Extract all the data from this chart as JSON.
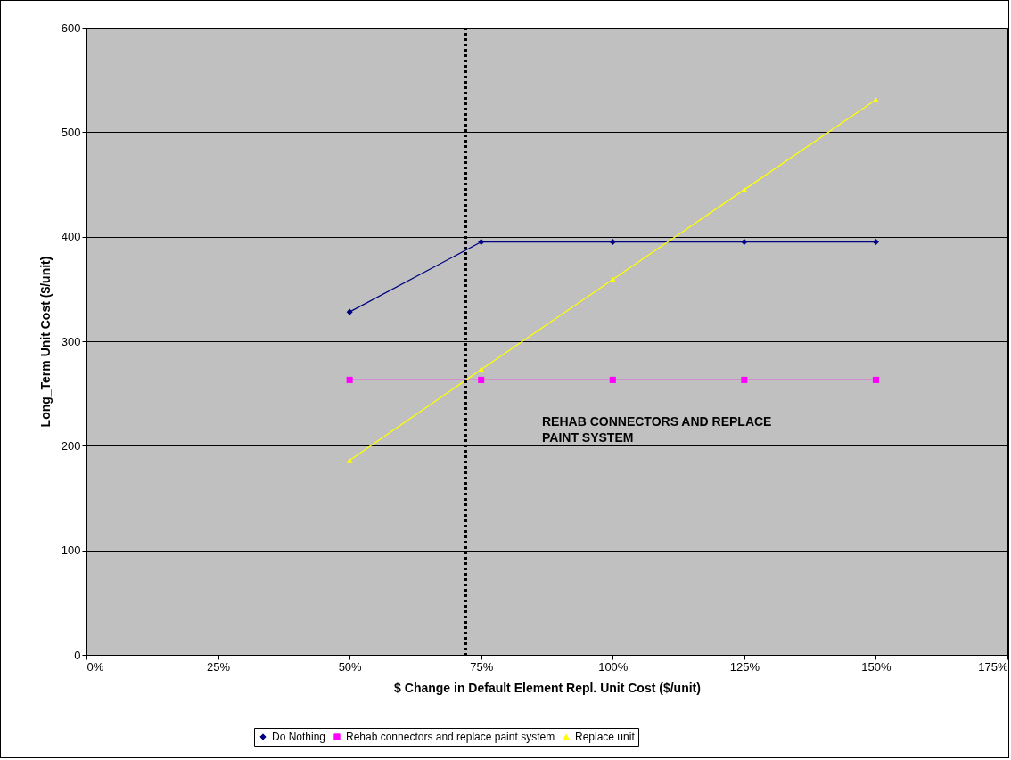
{
  "chart_data": {
    "type": "line",
    "xlabel": "$ Change in Default Element Repl. Unit Cost ($/unit)",
    "ylabel": "Long_Term Unit Cost ($/unit)",
    "x": [
      50,
      75,
      100,
      125,
      150
    ],
    "series": [
      {
        "name": "Do Nothing",
        "color": "#000080",
        "marker": "diamond",
        "values": [
          328,
          395,
          395,
          395,
          395
        ]
      },
      {
        "name": "Rehab connectors and replace paint system",
        "color": "#ff00ff",
        "marker": "square",
        "values": [
          263,
          263,
          263,
          263,
          263
        ]
      },
      {
        "name": "Replace unit",
        "color": "#ffff00",
        "marker": "triangle",
        "values": [
          186,
          273,
          359,
          445,
          531
        ]
      }
    ],
    "xlim": [
      0,
      175
    ],
    "xticks": [
      {
        "value": 0,
        "label": "0%"
      },
      {
        "value": 25,
        "label": "25%"
      },
      {
        "value": 50,
        "label": "50%"
      },
      {
        "value": 75,
        "label": "75%"
      },
      {
        "value": 100,
        "label": "100%"
      },
      {
        "value": 125,
        "label": "125%"
      },
      {
        "value": 150,
        "label": "150%"
      },
      {
        "value": 175,
        "label": "175%"
      }
    ],
    "ylim": [
      0,
      600
    ],
    "yticks": [
      0,
      100,
      200,
      300,
      400,
      500,
      600
    ],
    "ref_lines": [
      {
        "axis": "x",
        "value": 72,
        "color": "#000000",
        "line_style": "dotted"
      }
    ],
    "annotations": [
      "REHAB CONNECTORS AND REPLACE PAINT SYSTEM"
    ],
    "grid": "y",
    "legend": "bottom",
    "line_style": "solid"
  }
}
